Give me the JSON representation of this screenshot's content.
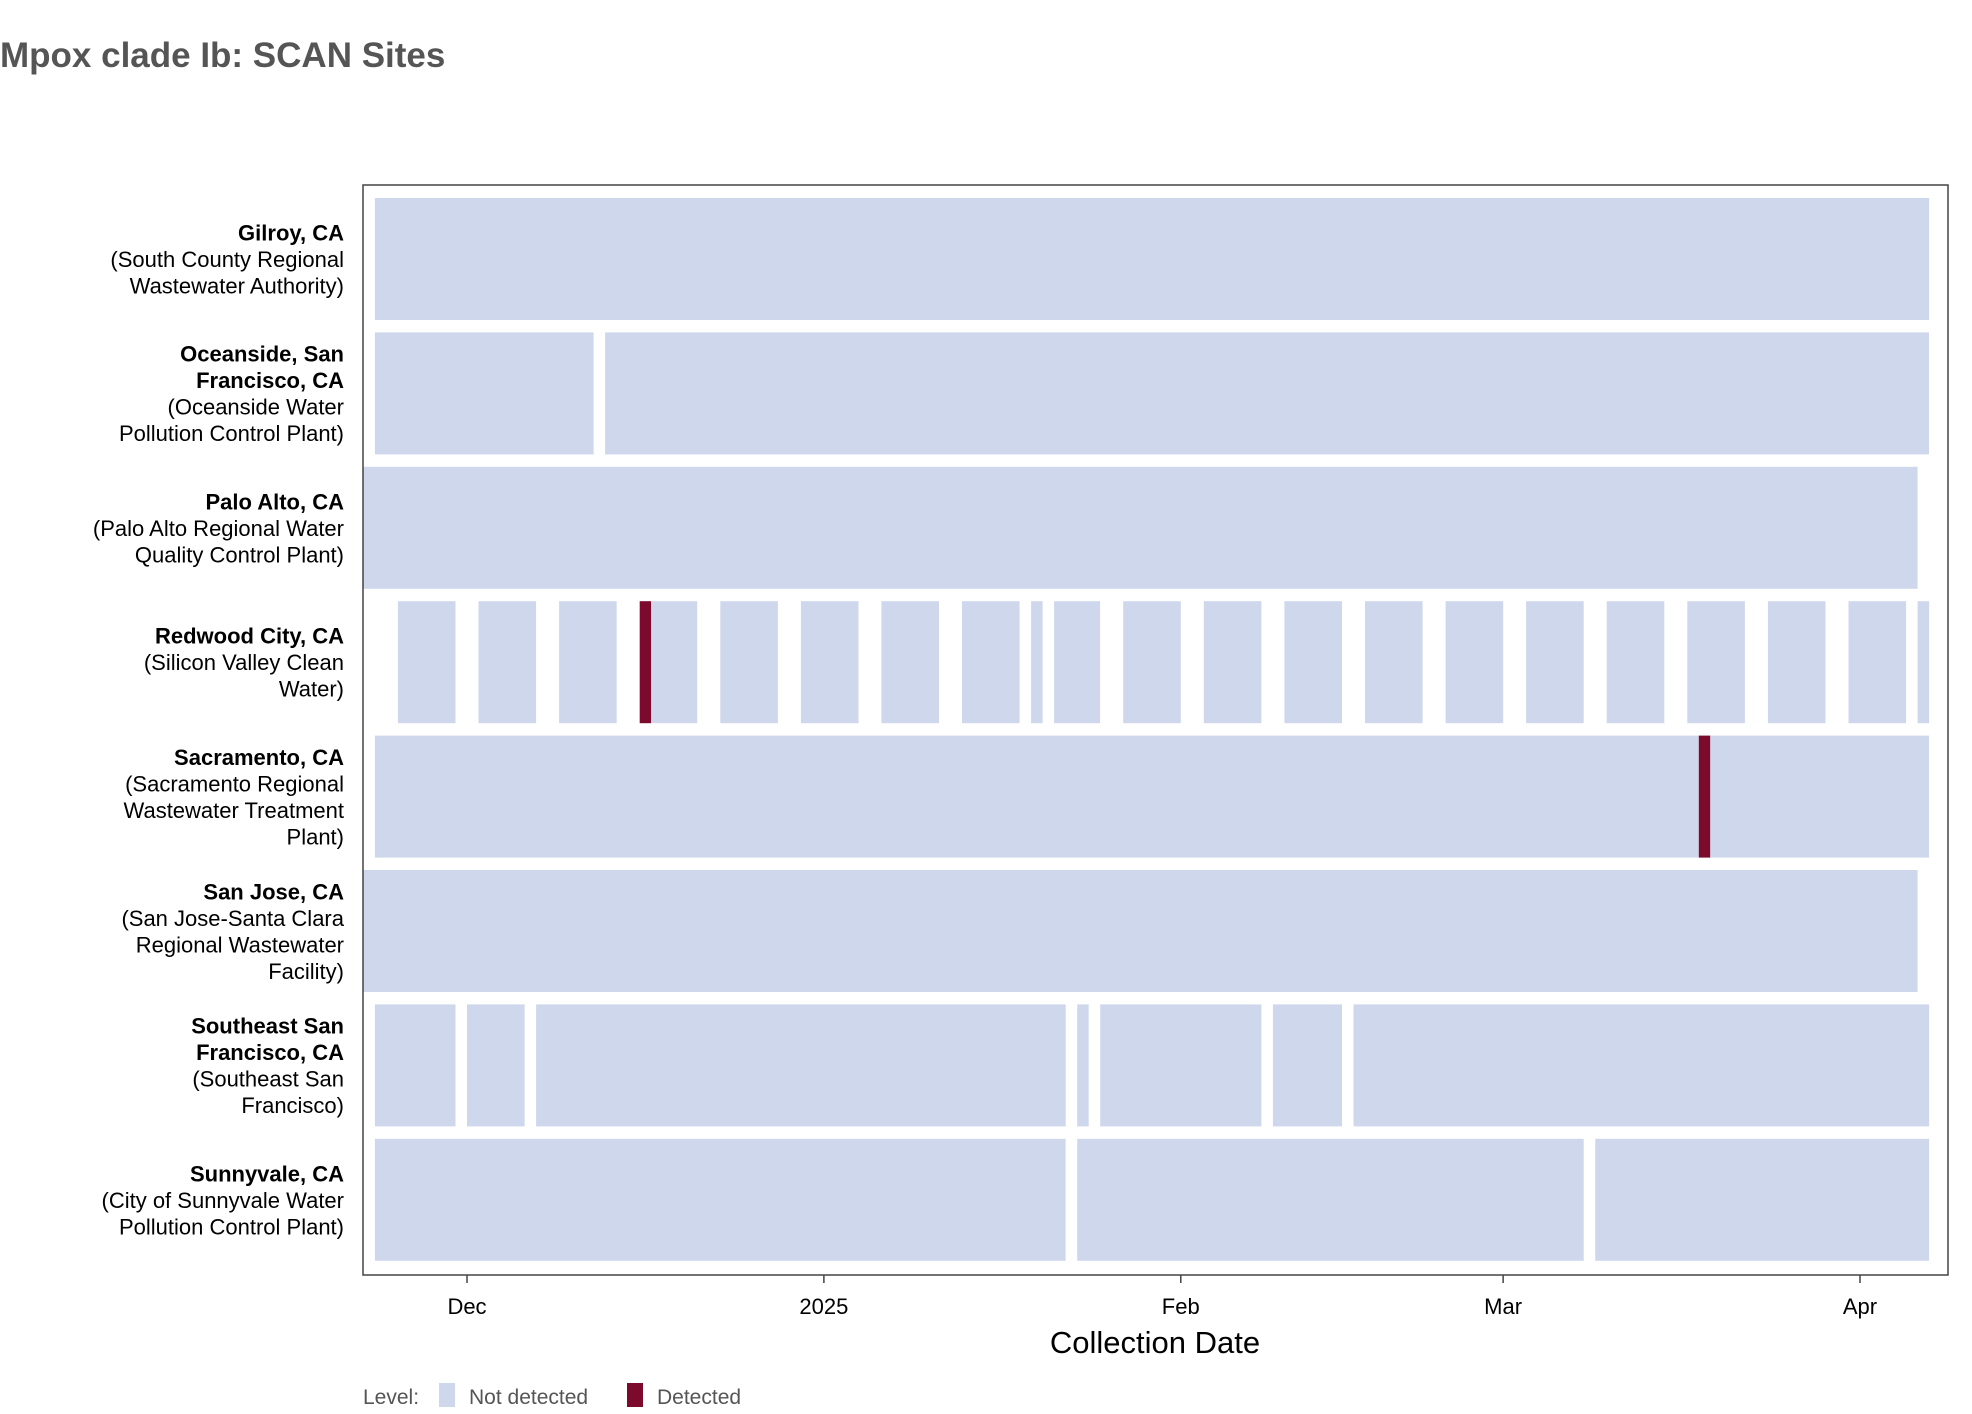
{
  "chart_data": {
    "type": "heatmap",
    "title": "Mpox clade Ib: SCAN Sites",
    "xlabel": "Collection Date",
    "ylabel": "",
    "x_range": [
      "2024-11-24",
      "2025-04-07"
    ],
    "x_ticks": [
      {
        "date": "2024-12-01",
        "label": "Dec"
      },
      {
        "date": "2025-01-01",
        "label": "2025"
      },
      {
        "date": "2025-02-01",
        "label": "Feb"
      },
      {
        "date": "2025-03-01",
        "label": "Mar"
      },
      {
        "date": "2025-04-01",
        "label": "Apr"
      }
    ],
    "grid": false,
    "legend": {
      "title": "Level:",
      "placement": "bottom-left",
      "entries": [
        {
          "label": "Not detected",
          "color": "#cfd7ed"
        },
        {
          "label": "Detected",
          "color": "#7b0a2c"
        }
      ]
    },
    "colors": {
      "Not detected": "#cfd7ed",
      "Detected": "#7b0a2c"
    },
    "sites": [
      {
        "name": "Gilroy, CA",
        "label_lines": [
          "(South County Regional",
          "Wastewater Authority)"
        ],
        "sampling": "daily",
        "samples": [
          {
            "start": "2024-11-23",
            "end": "2025-04-07",
            "level": "Not detected"
          }
        ]
      },
      {
        "name_lines": [
          "Oceanside, San",
          "Francisco, CA"
        ],
        "label_lines": [
          "(Oceanside Water",
          "Pollution Control Plant)"
        ],
        "sampling": "daily",
        "samples": [
          {
            "start": "2024-11-23",
            "end": "2024-12-12",
            "level": "Not detected"
          },
          {
            "start": "2024-12-13",
            "end": "2025-04-07",
            "level": "Not detected"
          }
        ]
      },
      {
        "name": "Palo Alto, CA",
        "label_lines": [
          "(Palo Alto Regional Water",
          "Quality Control Plant)"
        ],
        "sampling": "daily",
        "samples": [
          {
            "start": "2024-11-22",
            "end": "2025-04-06",
            "level": "Not detected"
          }
        ]
      },
      {
        "name": "Redwood City, CA",
        "label_lines": [
          "(Silicon Valley Clean",
          "Water)"
        ],
        "sampling": "weekly",
        "samples": [
          {
            "start": "2024-11-25",
            "end": "2024-11-30",
            "level": "Not detected"
          },
          {
            "start": "2024-12-02",
            "end": "2024-12-07",
            "level": "Not detected"
          },
          {
            "start": "2024-12-09",
            "end": "2024-12-14",
            "level": "Not detected"
          },
          {
            "start": "2024-12-16",
            "end": "2024-12-17",
            "level": "Detected"
          },
          {
            "start": "2024-12-17",
            "end": "2024-12-21",
            "level": "Not detected"
          },
          {
            "start": "2024-12-23",
            "end": "2024-12-28",
            "level": "Not detected"
          },
          {
            "start": "2024-12-30",
            "end": "2025-01-04",
            "level": "Not detected"
          },
          {
            "start": "2025-01-06",
            "end": "2025-01-11",
            "level": "Not detected"
          },
          {
            "start": "2025-01-13",
            "end": "2025-01-18",
            "level": "Not detected"
          },
          {
            "start": "2025-01-19",
            "end": "2025-01-20",
            "level": "Not detected"
          },
          {
            "start": "2025-01-21",
            "end": "2025-01-25",
            "level": "Not detected"
          },
          {
            "start": "2025-01-27",
            "end": "2025-02-01",
            "level": "Not detected"
          },
          {
            "start": "2025-02-03",
            "end": "2025-02-08",
            "level": "Not detected"
          },
          {
            "start": "2025-02-10",
            "end": "2025-02-15",
            "level": "Not detected"
          },
          {
            "start": "2025-02-17",
            "end": "2025-02-22",
            "level": "Not detected"
          },
          {
            "start": "2025-02-24",
            "end": "2025-03-01",
            "level": "Not detected"
          },
          {
            "start": "2025-03-03",
            "end": "2025-03-08",
            "level": "Not detected"
          },
          {
            "start": "2025-03-10",
            "end": "2025-03-15",
            "level": "Not detected"
          },
          {
            "start": "2025-03-17",
            "end": "2025-03-22",
            "level": "Not detected"
          },
          {
            "start": "2025-03-24",
            "end": "2025-03-29",
            "level": "Not detected"
          },
          {
            "start": "2025-03-31",
            "end": "2025-04-05",
            "level": "Not detected"
          },
          {
            "start": "2025-04-06",
            "end": "2025-04-07",
            "level": "Not detected"
          }
        ]
      },
      {
        "name": "Sacramento, CA",
        "label_lines": [
          "(Sacramento Regional",
          "Wastewater Treatment",
          "Plant)"
        ],
        "sampling": "daily",
        "samples": [
          {
            "start": "2024-11-23",
            "end": "2025-03-18",
            "level": "Not detected"
          },
          {
            "start": "2025-03-18",
            "end": "2025-03-19",
            "level": "Detected"
          },
          {
            "start": "2025-03-19",
            "end": "2025-04-07",
            "level": "Not detected"
          }
        ]
      },
      {
        "name": "San Jose, CA",
        "label_lines": [
          "(San Jose-Santa Clara",
          "Regional Wastewater",
          "Facility)"
        ],
        "sampling": "daily",
        "samples": [
          {
            "start": "2024-11-22",
            "end": "2025-04-06",
            "level": "Not detected"
          }
        ]
      },
      {
        "name_lines": [
          "Southeast San",
          "Francisco, CA"
        ],
        "label_lines": [
          "(Southeast San",
          "Francisco)"
        ],
        "sampling": "daily",
        "samples": [
          {
            "start": "2024-11-23",
            "end": "2024-11-30",
            "level": "Not detected"
          },
          {
            "start": "2024-12-01",
            "end": "2024-12-06",
            "level": "Not detected"
          },
          {
            "start": "2024-12-07",
            "end": "2025-01-22",
            "level": "Not detected"
          },
          {
            "start": "2025-01-23",
            "end": "2025-01-24",
            "level": "Not detected"
          },
          {
            "start": "2025-01-25",
            "end": "2025-02-08",
            "level": "Not detected"
          },
          {
            "start": "2025-02-09",
            "end": "2025-02-15",
            "level": "Not detected"
          },
          {
            "start": "2025-02-16",
            "end": "2025-04-07",
            "level": "Not detected"
          }
        ]
      },
      {
        "name": "Sunnyvale, CA",
        "label_lines": [
          "(City of Sunnyvale Water",
          "Pollution Control Plant)"
        ],
        "sampling": "daily",
        "samples": [
          {
            "start": "2024-11-23",
            "end": "2025-01-22",
            "level": "Not detected"
          },
          {
            "start": "2025-01-23",
            "end": "2025-03-08",
            "level": "Not detected"
          },
          {
            "start": "2025-03-09",
            "end": "2025-04-07",
            "level": "Not detected"
          }
        ]
      }
    ]
  }
}
